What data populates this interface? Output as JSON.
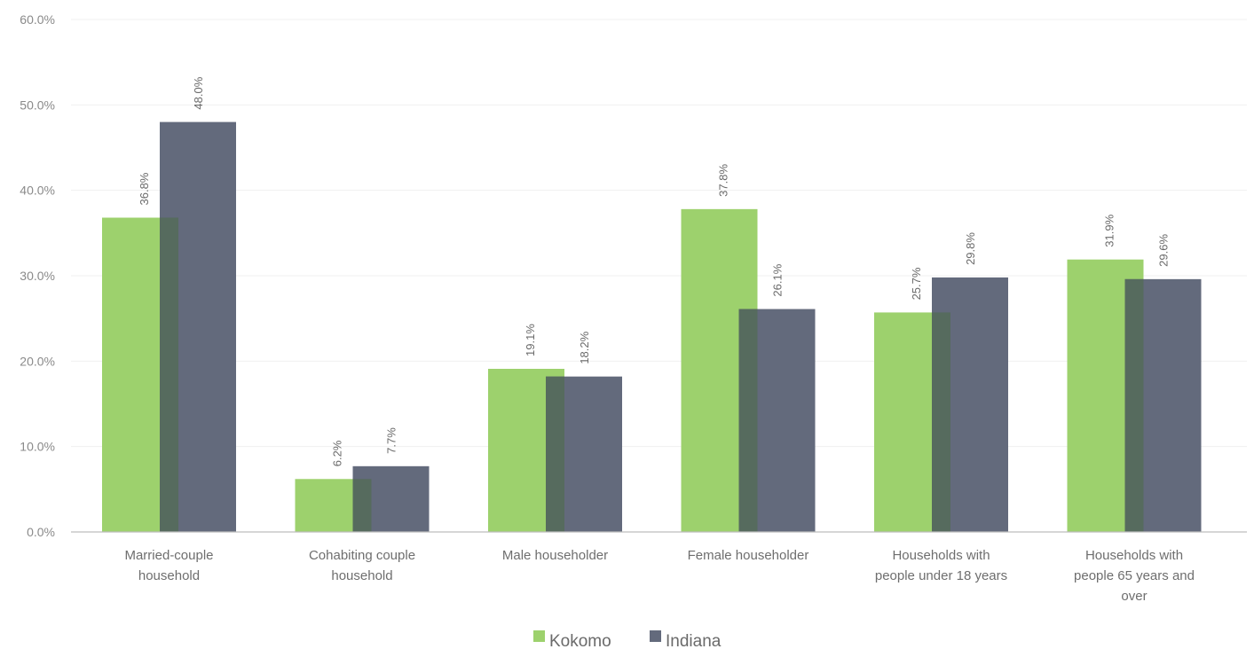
{
  "chart_data": {
    "type": "bar",
    "categories": [
      [
        "Married-couple",
        "household"
      ],
      [
        "Cohabiting couple",
        "household"
      ],
      [
        "Male householder"
      ],
      [
        "Female householder"
      ],
      [
        "Households with",
        "people under 18 years"
      ],
      [
        "Households with",
        "people 65 years and",
        "over"
      ]
    ],
    "series": [
      {
        "name": "Kokomo",
        "color": "#9dd16d",
        "values": [
          36.8,
          6.2,
          19.1,
          37.8,
          25.7,
          31.9
        ],
        "labels": [
          "36.8%",
          "6.2%",
          "19.1%",
          "37.8%",
          "25.7%",
          "31.9%"
        ]
      },
      {
        "name": "Indiana",
        "color": "#636a7c",
        "values": [
          48.0,
          7.7,
          18.2,
          26.1,
          29.8,
          29.6
        ],
        "labels": [
          "48.0%",
          "7.7%",
          "18.2%",
          "26.1%",
          "29.8%",
          "29.6%"
        ]
      }
    ],
    "overlap_color": "#566b5e",
    "y_ticks": [
      "0.0%",
      "10.0%",
      "20.0%",
      "30.0%",
      "40.0%",
      "50.0%",
      "60.0%"
    ],
    "ylim": [
      0,
      60
    ],
    "grid": true,
    "legend": "bottom-center"
  }
}
